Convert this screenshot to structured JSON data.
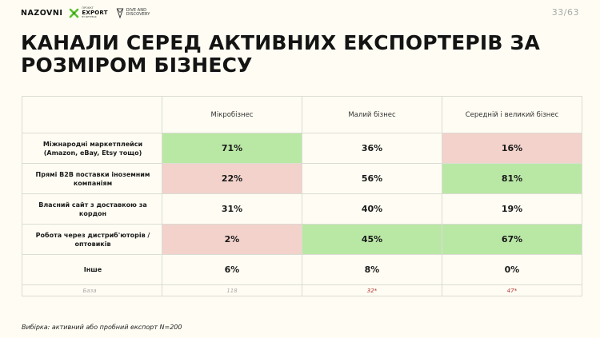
{
  "header": {
    "logo_main": "NAZOVNI",
    "logo_export_top": "ПРОЄКТ",
    "logo_export_main": "EXPORT",
    "logo_export_sub": "BY NETPEAK",
    "logo_dive_line1": "DIVE AND",
    "logo_dive_line2": "DISCOVERY",
    "page_number": "33/63"
  },
  "title": "КАНАЛИ СЕРЕД АКТИВНИХ ЕКСПОРТЕРІВ ЗА РОЗМІРОМ БІЗНЕСУ",
  "colors": {
    "green": "#b9e8a5",
    "red": "#f2d2cb",
    "base_red": "#b03030"
  },
  "table": {
    "columns": [
      "Мікробізнес",
      "Малий бізнес",
      "Середній і великий бізнес"
    ],
    "rows": [
      {
        "label": "Міжнародні маркетплейси (Amazon, eBay, Etsy тощо)",
        "values": [
          "71%",
          "36%",
          "16%"
        ]
      },
      {
        "label": "Прямі B2B поставки іноземним компаніям",
        "values": [
          "22%",
          "56%",
          "81%"
        ]
      },
      {
        "label": "Власний сайт з доставкою за кордон",
        "values": [
          "31%",
          "40%",
          "19%"
        ]
      },
      {
        "label": "Робота через дистриб'юторів / оптовиків",
        "values": [
          "2%",
          "45%",
          "67%"
        ]
      },
      {
        "label": "Інше",
        "values": [
          "6%",
          "8%",
          "0%"
        ]
      }
    ],
    "base": {
      "label": "База",
      "values": [
        "118",
        "32*",
        "47*"
      ]
    }
  },
  "footnote": "Вибірка: активний або пробний експорт N=200"
}
